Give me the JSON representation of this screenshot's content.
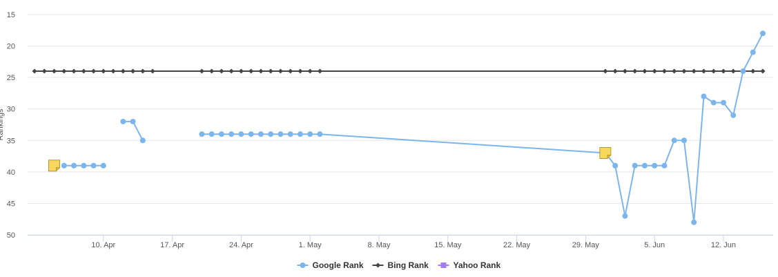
{
  "chart_data": {
    "type": "line",
    "title": "",
    "xlabel": "",
    "ylabel": "Rankings",
    "y_reversed": true,
    "ylim": [
      15,
      50
    ],
    "yticks": [
      15,
      20,
      25,
      30,
      35,
      40,
      45,
      50
    ],
    "xlim": [
      "2023-04-03",
      "2023-06-16"
    ],
    "x_tick_labels": [
      {
        "date": "2023-04-10",
        "label": "10. Apr"
      },
      {
        "date": "2023-04-17",
        "label": "17. Apr"
      },
      {
        "date": "2023-04-24",
        "label": "24. Apr"
      },
      {
        "date": "2023-05-01",
        "label": "1. May"
      },
      {
        "date": "2023-05-08",
        "label": "8. May"
      },
      {
        "date": "2023-05-15",
        "label": "15. May"
      },
      {
        "date": "2023-05-22",
        "label": "22. May"
      },
      {
        "date": "2023-05-29",
        "label": "29. May"
      },
      {
        "date": "2023-06-05",
        "label": "5. Jun"
      },
      {
        "date": "2023-06-12",
        "label": "12. Jun"
      }
    ],
    "grid": true,
    "legend_position": "bottom-center",
    "series": [
      {
        "name": "Google Rank",
        "color": "#7cb5ec",
        "marker": "circle",
        "segments": [
          [
            [
              "2023-04-06",
              39
            ],
            [
              "2023-04-07",
              39
            ],
            [
              "2023-04-08",
              39
            ],
            [
              "2023-04-09",
              39
            ],
            [
              "2023-04-10",
              39
            ]
          ],
          [
            [
              "2023-04-12",
              32
            ],
            [
              "2023-04-13",
              32
            ],
            [
              "2023-04-14",
              35
            ]
          ],
          [
            [
              "2023-04-20",
              34
            ],
            [
              "2023-04-21",
              34
            ],
            [
              "2023-04-22",
              34
            ],
            [
              "2023-04-23",
              34
            ],
            [
              "2023-04-24",
              34
            ],
            [
              "2023-04-25",
              34
            ],
            [
              "2023-04-26",
              34
            ],
            [
              "2023-04-27",
              34
            ],
            [
              "2023-04-28",
              34
            ],
            [
              "2023-04-29",
              34
            ],
            [
              "2023-04-30",
              34
            ],
            [
              "2023-05-01",
              34
            ],
            [
              "2023-05-02",
              34
            ],
            [
              "2023-05-31",
              37
            ],
            [
              "2023-06-01",
              39
            ],
            [
              "2023-06-02",
              47
            ],
            [
              "2023-06-03",
              39
            ],
            [
              "2023-06-04",
              39
            ],
            [
              "2023-06-05",
              39
            ],
            [
              "2023-06-06",
              39
            ],
            [
              "2023-06-07",
              35
            ],
            [
              "2023-06-08",
              35
            ],
            [
              "2023-06-09",
              48
            ],
            [
              "2023-06-10",
              28
            ],
            [
              "2023-06-11",
              29
            ],
            [
              "2023-06-12",
              29
            ],
            [
              "2023-06-13",
              31
            ],
            [
              "2023-06-14",
              24
            ],
            [
              "2023-06-15",
              21
            ],
            [
              "2023-06-16",
              18
            ]
          ]
        ]
      },
      {
        "name": "Bing Rank",
        "color": "#434348",
        "marker": "diamond",
        "segments": [
          [
            [
              "2023-04-03",
              24
            ],
            [
              "2023-04-04",
              24
            ],
            [
              "2023-04-05",
              24
            ],
            [
              "2023-04-06",
              24
            ],
            [
              "2023-04-07",
              24
            ],
            [
              "2023-04-08",
              24
            ],
            [
              "2023-04-09",
              24
            ],
            [
              "2023-04-10",
              24
            ],
            [
              "2023-04-11",
              24
            ],
            [
              "2023-04-12",
              24
            ],
            [
              "2023-04-13",
              24
            ],
            [
              "2023-04-14",
              24
            ],
            [
              "2023-04-15",
              24
            ],
            [
              "2023-04-20",
              24
            ],
            [
              "2023-04-21",
              24
            ],
            [
              "2023-04-22",
              24
            ],
            [
              "2023-04-23",
              24
            ],
            [
              "2023-04-24",
              24
            ],
            [
              "2023-04-25",
              24
            ],
            [
              "2023-04-26",
              24
            ],
            [
              "2023-04-27",
              24
            ],
            [
              "2023-04-28",
              24
            ],
            [
              "2023-04-29",
              24
            ],
            [
              "2023-04-30",
              24
            ],
            [
              "2023-05-01",
              24
            ],
            [
              "2023-05-02",
              24
            ],
            [
              "2023-05-31",
              24
            ],
            [
              "2023-06-01",
              24
            ],
            [
              "2023-06-02",
              24
            ],
            [
              "2023-06-03",
              24
            ],
            [
              "2023-06-04",
              24
            ],
            [
              "2023-06-05",
              24
            ],
            [
              "2023-06-06",
              24
            ],
            [
              "2023-06-07",
              24
            ],
            [
              "2023-06-08",
              24
            ],
            [
              "2023-06-09",
              24
            ],
            [
              "2023-06-10",
              24
            ],
            [
              "2023-06-11",
              24
            ],
            [
              "2023-06-12",
              24
            ],
            [
              "2023-06-13",
              24
            ],
            [
              "2023-06-14",
              24
            ],
            [
              "2023-06-15",
              24
            ],
            [
              "2023-06-16",
              24
            ]
          ]
        ]
      },
      {
        "name": "Yahoo Rank",
        "color": "#a47ee8",
        "marker": "square",
        "segments": []
      }
    ],
    "annotations": [
      {
        "type": "note-icon",
        "date": "2023-04-05",
        "value": 39
      },
      {
        "type": "note-icon",
        "date": "2023-05-31",
        "value": 37
      }
    ]
  }
}
